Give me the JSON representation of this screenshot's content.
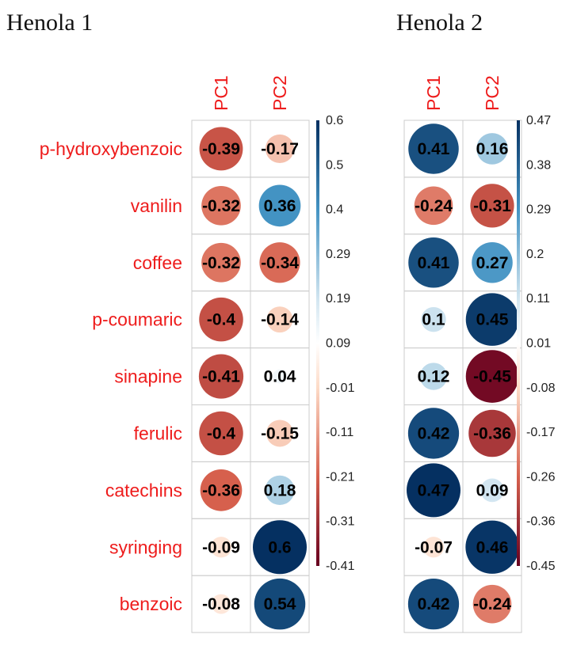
{
  "colors": {
    "negative_end": "#67001f",
    "neutral": "#ffffff",
    "positive_end": "#053061",
    "row_label": "#ee1c1c",
    "col_label": "#ee1c1c",
    "cell_text": "#000000",
    "grid": "#cccccc"
  },
  "chart_data": [
    {
      "type": "heatmap",
      "title": "Henola 1",
      "columns": [
        "PC1",
        "PC2"
      ],
      "rows": [
        "p-hydroxybenzoic",
        "vanilin",
        "coffee",
        "p-coumaric",
        "sinapine",
        "ferulic",
        "catechins",
        "syringing",
        "benzoic"
      ],
      "values": [
        [
          -0.39,
          -0.17
        ],
        [
          -0.32,
          0.36
        ],
        [
          -0.32,
          -0.34
        ],
        [
          -0.4,
          -0.14
        ],
        [
          -0.41,
          0.04
        ],
        [
          -0.4,
          -0.15
        ],
        [
          -0.36,
          0.18
        ],
        [
          -0.09,
          0.6
        ],
        [
          -0.08,
          0.54
        ]
      ],
      "value_labels": [
        [
          "-0.39",
          "-0.17"
        ],
        [
          "-0.32",
          "0.36"
        ],
        [
          "-0.32",
          "-0.34"
        ],
        [
          "-0.4",
          "-0.14"
        ],
        [
          "-0.41",
          "0.04"
        ],
        [
          "-0.4",
          "-0.15"
        ],
        [
          "-0.36",
          "0.18"
        ],
        [
          "-0.09",
          "0.6"
        ],
        [
          "-0.08",
          "0.54"
        ]
      ],
      "colorbar_ticks": [
        "0.6",
        "0.5",
        "0.4",
        "0.29",
        "0.19",
        "0.09",
        "-0.01",
        "-0.11",
        "-0.21",
        "-0.31",
        "-0.41"
      ],
      "color_range": [
        -0.41,
        0.6
      ]
    },
    {
      "type": "heatmap",
      "title": "Henola 2",
      "columns": [
        "PC1",
        "PC2"
      ],
      "rows": [
        "p-hydroxybenzoic",
        "vanilin",
        "coffee",
        "p-coumaric",
        "sinapine",
        "ferulic",
        "catechins",
        "syringing",
        "benzoic"
      ],
      "values": [
        [
          0.41,
          0.16
        ],
        [
          -0.24,
          -0.31
        ],
        [
          0.41,
          0.27
        ],
        [
          0.1,
          0.45
        ],
        [
          0.12,
          -0.45
        ],
        [
          0.42,
          -0.36
        ],
        [
          0.47,
          0.09
        ],
        [
          -0.07,
          0.46
        ],
        [
          0.42,
          -0.24
        ]
      ],
      "value_labels": [
        [
          "0.41",
          "0.16"
        ],
        [
          "-0.24",
          "-0.31"
        ],
        [
          "0.41",
          "0.27"
        ],
        [
          "0.1",
          "0.45"
        ],
        [
          "0.12",
          "-0.45"
        ],
        [
          "0.42",
          "-0.36"
        ],
        [
          "0.47",
          "0.09"
        ],
        [
          "-0.07",
          "0.46"
        ],
        [
          "0.42",
          "-0.24"
        ]
      ],
      "colorbar_ticks": [
        "0.47",
        "0.38",
        "0.29",
        "0.2",
        "0.11",
        "0.01",
        "-0.08",
        "-0.17",
        "-0.26",
        "-0.36",
        "-0.45"
      ],
      "color_range": [
        -0.45,
        0.47
      ]
    }
  ]
}
